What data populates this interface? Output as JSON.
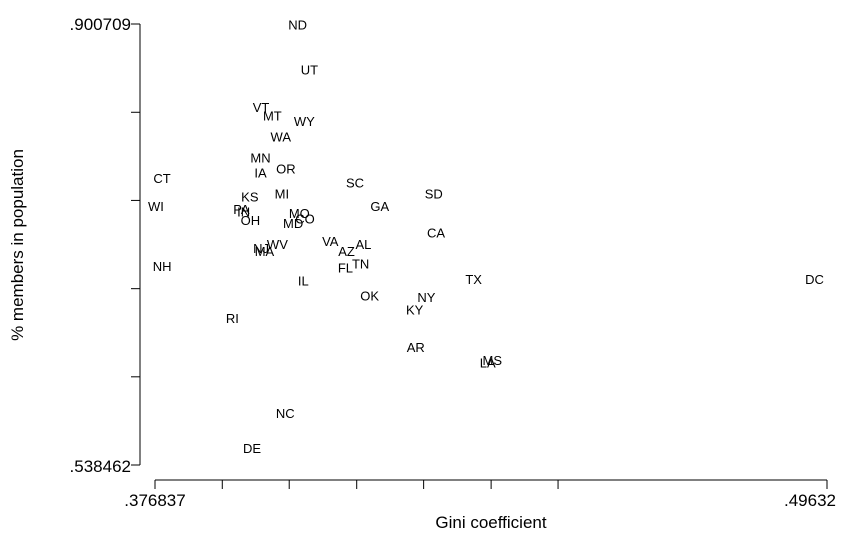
{
  "chart_data": {
    "type": "scatter",
    "xlabel": "Gini coefficient",
    "ylabel": "% members in population",
    "xlim": [
      0.376837,
      0.49632
    ],
    "ylim": [
      0.538462,
      0.900709
    ],
    "x_tick_labels": [
      ".376837",
      ".49632"
    ],
    "y_tick_labels": [
      ".538462",
      ".900709"
    ],
    "x_ticks": [
      0.376837,
      0.3888,
      0.4007,
      0.4127,
      0.4246,
      0.4366,
      0.4485,
      0.49632
    ],
    "y_ticks": [
      0.538462,
      0.6109,
      0.6833,
      0.7558,
      0.8282,
      0.900709
    ],
    "grid": false,
    "points": [
      {
        "label": "ND",
        "x": 0.4022,
        "y": 0.8998
      },
      {
        "label": "UT",
        "x": 0.4043,
        "y": 0.8631
      },
      {
        "label": "VT",
        "x": 0.3957,
        "y": 0.8322
      },
      {
        "label": "MT",
        "x": 0.3977,
        "y": 0.8253
      },
      {
        "label": "WY",
        "x": 0.4034,
        "y": 0.8206
      },
      {
        "label": "WA",
        "x": 0.3992,
        "y": 0.808
      },
      {
        "label": "MN",
        "x": 0.3956,
        "y": 0.7908
      },
      {
        "label": "OR",
        "x": 0.4001,
        "y": 0.7816
      },
      {
        "label": "IA",
        "x": 0.3956,
        "y": 0.7782
      },
      {
        "label": "CT",
        "x": 0.3781,
        "y": 0.7736
      },
      {
        "label": "SC",
        "x": 0.4124,
        "y": 0.7702
      },
      {
        "label": "MI",
        "x": 0.3994,
        "y": 0.761
      },
      {
        "label": "SD",
        "x": 0.4264,
        "y": 0.761
      },
      {
        "label": "KS",
        "x": 0.3937,
        "y": 0.7587
      },
      {
        "label": "WI",
        "x": 0.377,
        "y": 0.7507
      },
      {
        "label": "GA",
        "x": 0.4168,
        "y": 0.7507
      },
      {
        "label": "PA",
        "x": 0.3922,
        "y": 0.7484
      },
      {
        "label": "IN",
        "x": 0.3926,
        "y": 0.7461
      },
      {
        "label": "MO",
        "x": 0.4025,
        "y": 0.745
      },
      {
        "label": "CO",
        "x": 0.4035,
        "y": 0.7404
      },
      {
        "label": "OH",
        "x": 0.3938,
        "y": 0.7392
      },
      {
        "label": "MD",
        "x": 0.4014,
        "y": 0.7369
      },
      {
        "label": "CA",
        "x": 0.4268,
        "y": 0.7289
      },
      {
        "label": "VA",
        "x": 0.408,
        "y": 0.722
      },
      {
        "label": "WV",
        "x": 0.3986,
        "y": 0.7197
      },
      {
        "label": "AL",
        "x": 0.4139,
        "y": 0.7197
      },
      {
        "label": "NJ",
        "x": 0.3957,
        "y": 0.7163
      },
      {
        "label": "MA",
        "x": 0.3963,
        "y": 0.714
      },
      {
        "label": "AZ",
        "x": 0.4109,
        "y": 0.714
      },
      {
        "label": "TN",
        "x": 0.4134,
        "y": 0.7036
      },
      {
        "label": "FL",
        "x": 0.4107,
        "y": 0.7002
      },
      {
        "label": "NH",
        "x": 0.3781,
        "y": 0.7014
      },
      {
        "label": "TX",
        "x": 0.4335,
        "y": 0.691
      },
      {
        "label": "DC",
        "x": 0.4941,
        "y": 0.691
      },
      {
        "label": "IL",
        "x": 0.4032,
        "y": 0.6898
      },
      {
        "label": "OK",
        "x": 0.415,
        "y": 0.6773
      },
      {
        "label": "NY",
        "x": 0.4251,
        "y": 0.6761
      },
      {
        "label": "KY",
        "x": 0.423,
        "y": 0.6658
      },
      {
        "label": "RI",
        "x": 0.3906,
        "y": 0.6589
      },
      {
        "label": "AR",
        "x": 0.4232,
        "y": 0.6348
      },
      {
        "label": "MS",
        "x": 0.4368,
        "y": 0.6245
      },
      {
        "label": "LA",
        "x": 0.436,
        "y": 0.6222
      },
      {
        "label": "NC",
        "x": 0.4,
        "y": 0.5809
      },
      {
        "label": "DE",
        "x": 0.3941,
        "y": 0.5522
      }
    ]
  }
}
